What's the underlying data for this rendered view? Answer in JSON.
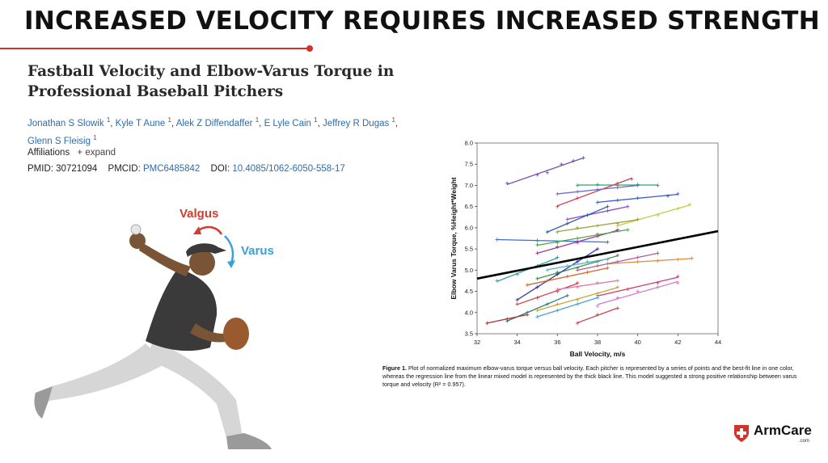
{
  "headline": "INCREASED VELOCITY REQUIRES INCREASED STRENGTH",
  "paper": {
    "title": "Fastball Velocity and Elbow-Varus Torque in Professional Baseball Pitchers",
    "authors": [
      {
        "name": "Jonathan S Slowik",
        "sup": "1"
      },
      {
        "name": "Kyle T Aune",
        "sup": "1"
      },
      {
        "name": "Alek Z Diffendaffer",
        "sup": "1"
      },
      {
        "name": "E Lyle Cain",
        "sup": "1"
      },
      {
        "name": "Jeffrey R Dugas",
        "sup": "1"
      },
      {
        "name": "Glenn S Fleisig",
        "sup": "1"
      }
    ],
    "affiliations": "Affiliations",
    "expand": "+ expand",
    "pmid_label": "PMID:",
    "pmid": "30721094",
    "pmcid_label": "PMCID:",
    "pmcid": "PMC6485842",
    "doi_label": "DOI:",
    "doi": "10.4085/1062-6050-558-17"
  },
  "illustration": {
    "valgus_label": "Valgus",
    "varus_label": "Varus"
  },
  "chart_data": {
    "type": "scatter",
    "xlabel": "Ball Velocity, m/s",
    "ylabel": "Elbow Varus Torque, %Height*Weight",
    "xlim": [
      32,
      44
    ],
    "ylim": [
      3.5,
      8.0
    ],
    "xticks": [
      "32",
      "34",
      "36",
      "38",
      "40",
      "42",
      "44"
    ],
    "yticks": [
      "3.5",
      "4.0",
      "4.5",
      "5.0",
      "5.5",
      "6.0",
      "6.5",
      "7.0",
      "7.5",
      "8.0"
    ],
    "grid": false,
    "regression_line": {
      "color": "#000000",
      "x": [
        32,
        44
      ],
      "y": [
        4.8,
        5.92
      ]
    },
    "series": [
      {
        "color": "#7a4fb0",
        "x": [
          33.5,
          35.0,
          35.5,
          36.2,
          36.8,
          37.3
        ],
        "y": [
          7.05,
          7.25,
          7.3,
          7.5,
          7.58,
          7.65
        ]
      },
      {
        "color": "#2ea36a",
        "x": [
          37.0,
          38.0,
          39.0,
          40.0,
          41.0
        ],
        "y": [
          7.0,
          7.02,
          7.0,
          7.02,
          7.0
        ]
      },
      {
        "color": "#d2404e",
        "x": [
          36.0,
          37.0,
          38.0,
          39.0,
          39.7
        ],
        "y": [
          6.5,
          6.7,
          6.9,
          7.05,
          7.15
        ]
      },
      {
        "color": "#3b5bd4",
        "x": [
          38.0,
          39.0,
          40.0,
          41.5,
          42.0
        ],
        "y": [
          6.6,
          6.65,
          6.7,
          6.75,
          6.8
        ]
      },
      {
        "color": "#c9c94a",
        "x": [
          39.0,
          40.0,
          41.0,
          42.0,
          42.6
        ],
        "y": [
          6.05,
          6.2,
          6.3,
          6.45,
          6.55
        ]
      },
      {
        "color": "#3a6dd8",
        "x": [
          33.0,
          35.0,
          37.0,
          38.5
        ],
        "y": [
          5.72,
          5.7,
          5.68,
          5.66
        ]
      },
      {
        "color": "#e08a3a",
        "x": [
          38.5,
          40.0,
          41.0,
          42.0,
          42.7
        ],
        "y": [
          5.15,
          5.2,
          5.22,
          5.25,
          5.28
        ]
      },
      {
        "color": "#d04070",
        "x": [
          38.0,
          39.5,
          41.0,
          42.0
        ],
        "y": [
          4.4,
          4.55,
          4.7,
          4.85
        ]
      },
      {
        "color": "#4f9fd8",
        "x": [
          35.0,
          36.0,
          37.0,
          38.0
        ],
        "y": [
          3.9,
          4.05,
          4.2,
          4.35
        ]
      },
      {
        "color": "#3e8f4f",
        "x": [
          35.0,
          36.0,
          37.0,
          38.0,
          39.0
        ],
        "y": [
          4.8,
          4.95,
          5.05,
          5.2,
          5.35
        ]
      },
      {
        "color": "#9aa53a",
        "x": [
          36.0,
          37.0,
          38.0,
          39.0,
          40.0
        ],
        "y": [
          5.9,
          6.0,
          6.05,
          6.1,
          6.2
        ]
      },
      {
        "color": "#a03a8c",
        "x": [
          35.0,
          36.0,
          37.0,
          38.0,
          39.0
        ],
        "y": [
          5.4,
          5.55,
          5.65,
          5.8,
          5.95
        ]
      },
      {
        "color": "#3a3ab0",
        "x": [
          34.0,
          35.0,
          36.0,
          37.0,
          38.0
        ],
        "y": [
          4.3,
          4.6,
          4.9,
          5.2,
          5.5
        ]
      },
      {
        "color": "#d2404e",
        "x": [
          34.0,
          35.0,
          36.0,
          37.0
        ],
        "y": [
          4.2,
          4.35,
          4.5,
          4.7
        ]
      },
      {
        "color": "#e07ab0",
        "x": [
          36.0,
          37.0,
          38.0,
          39.0
        ],
        "y": [
          4.55,
          4.6,
          4.7,
          4.75
        ]
      },
      {
        "color": "#5ab8c8",
        "x": [
          35.5,
          36.5,
          37.5,
          38.5
        ],
        "y": [
          5.0,
          5.1,
          5.2,
          5.25
        ]
      },
      {
        "color": "#2e7d7a",
        "x": [
          33.5,
          34.5,
          35.5,
          36.5
        ],
        "y": [
          3.8,
          4.0,
          4.2,
          4.4
        ]
      },
      {
        "color": "#c8a83a",
        "x": [
          35.0,
          36.0,
          37.0,
          38.0,
          39.0
        ],
        "y": [
          4.05,
          4.2,
          4.3,
          4.45,
          4.6
        ]
      },
      {
        "color": "#8a4ad0",
        "x": [
          36.5,
          37.5,
          38.5,
          39.5
        ],
        "y": [
          6.2,
          6.3,
          6.4,
          6.5
        ]
      },
      {
        "color": "#d06a2a",
        "x": [
          34.5,
          35.5,
          36.5,
          37.5,
          38.5
        ],
        "y": [
          4.65,
          4.75,
          4.85,
          4.95,
          5.05
        ]
      },
      {
        "color": "#4aa84a",
        "x": [
          35.0,
          36.0,
          37.0,
          38.0,
          39.5
        ],
        "y": [
          5.6,
          5.65,
          5.75,
          5.85,
          5.95
        ]
      },
      {
        "color": "#b03030",
        "x": [
          32.5,
          33.5,
          34.5
        ],
        "y": [
          3.75,
          3.85,
          3.95
        ]
      },
      {
        "color": "#6a6ad0",
        "x": [
          36.0,
          37.0,
          38.0,
          39.0,
          40.0
        ],
        "y": [
          6.8,
          6.85,
          6.9,
          6.95,
          7.0
        ]
      },
      {
        "color": "#30a0a0",
        "x": [
          33.0,
          34.0,
          35.0,
          36.0
        ],
        "y": [
          4.75,
          4.9,
          5.1,
          5.3
        ]
      },
      {
        "color": "#b05a9a",
        "x": [
          37.0,
          38.0,
          39.0,
          40.0,
          41.0
        ],
        "y": [
          5.0,
          5.1,
          5.2,
          5.3,
          5.4
        ]
      },
      {
        "color": "#d2404e",
        "x": [
          37.0,
          38.0,
          39.0
        ],
        "y": [
          3.75,
          3.95,
          4.1
        ]
      },
      {
        "color": "#d07ad0",
        "x": [
          38.0,
          39.0,
          40.0,
          41.0,
          42.0
        ],
        "y": [
          4.15,
          4.35,
          4.5,
          4.6,
          4.7
        ]
      },
      {
        "color": "#2e5ea8",
        "x": [
          35.5,
          36.5,
          37.5,
          38.5
        ],
        "y": [
          5.9,
          6.1,
          6.3,
          6.5
        ]
      }
    ]
  },
  "caption": {
    "lead": "Figure 1.",
    "text": "Plot of normalized maximum elbow-varus torque versus ball velocity. Each pitcher is represented by a series of points and the best-fit line in one color, whereas the regression line from the linear mixed model is represented by the thick black line. This model suggested a strong positive relationship between varus torque and velocity (R² = 0.957)."
  },
  "logo": {
    "name": "ArmCare",
    "sub": ".com",
    "brand_color": "#d4312b"
  },
  "colors": {
    "accent": "#d4312b",
    "link": "#2b6cb0",
    "valgus": "#d33b2f",
    "varus": "#3aa0d8"
  }
}
